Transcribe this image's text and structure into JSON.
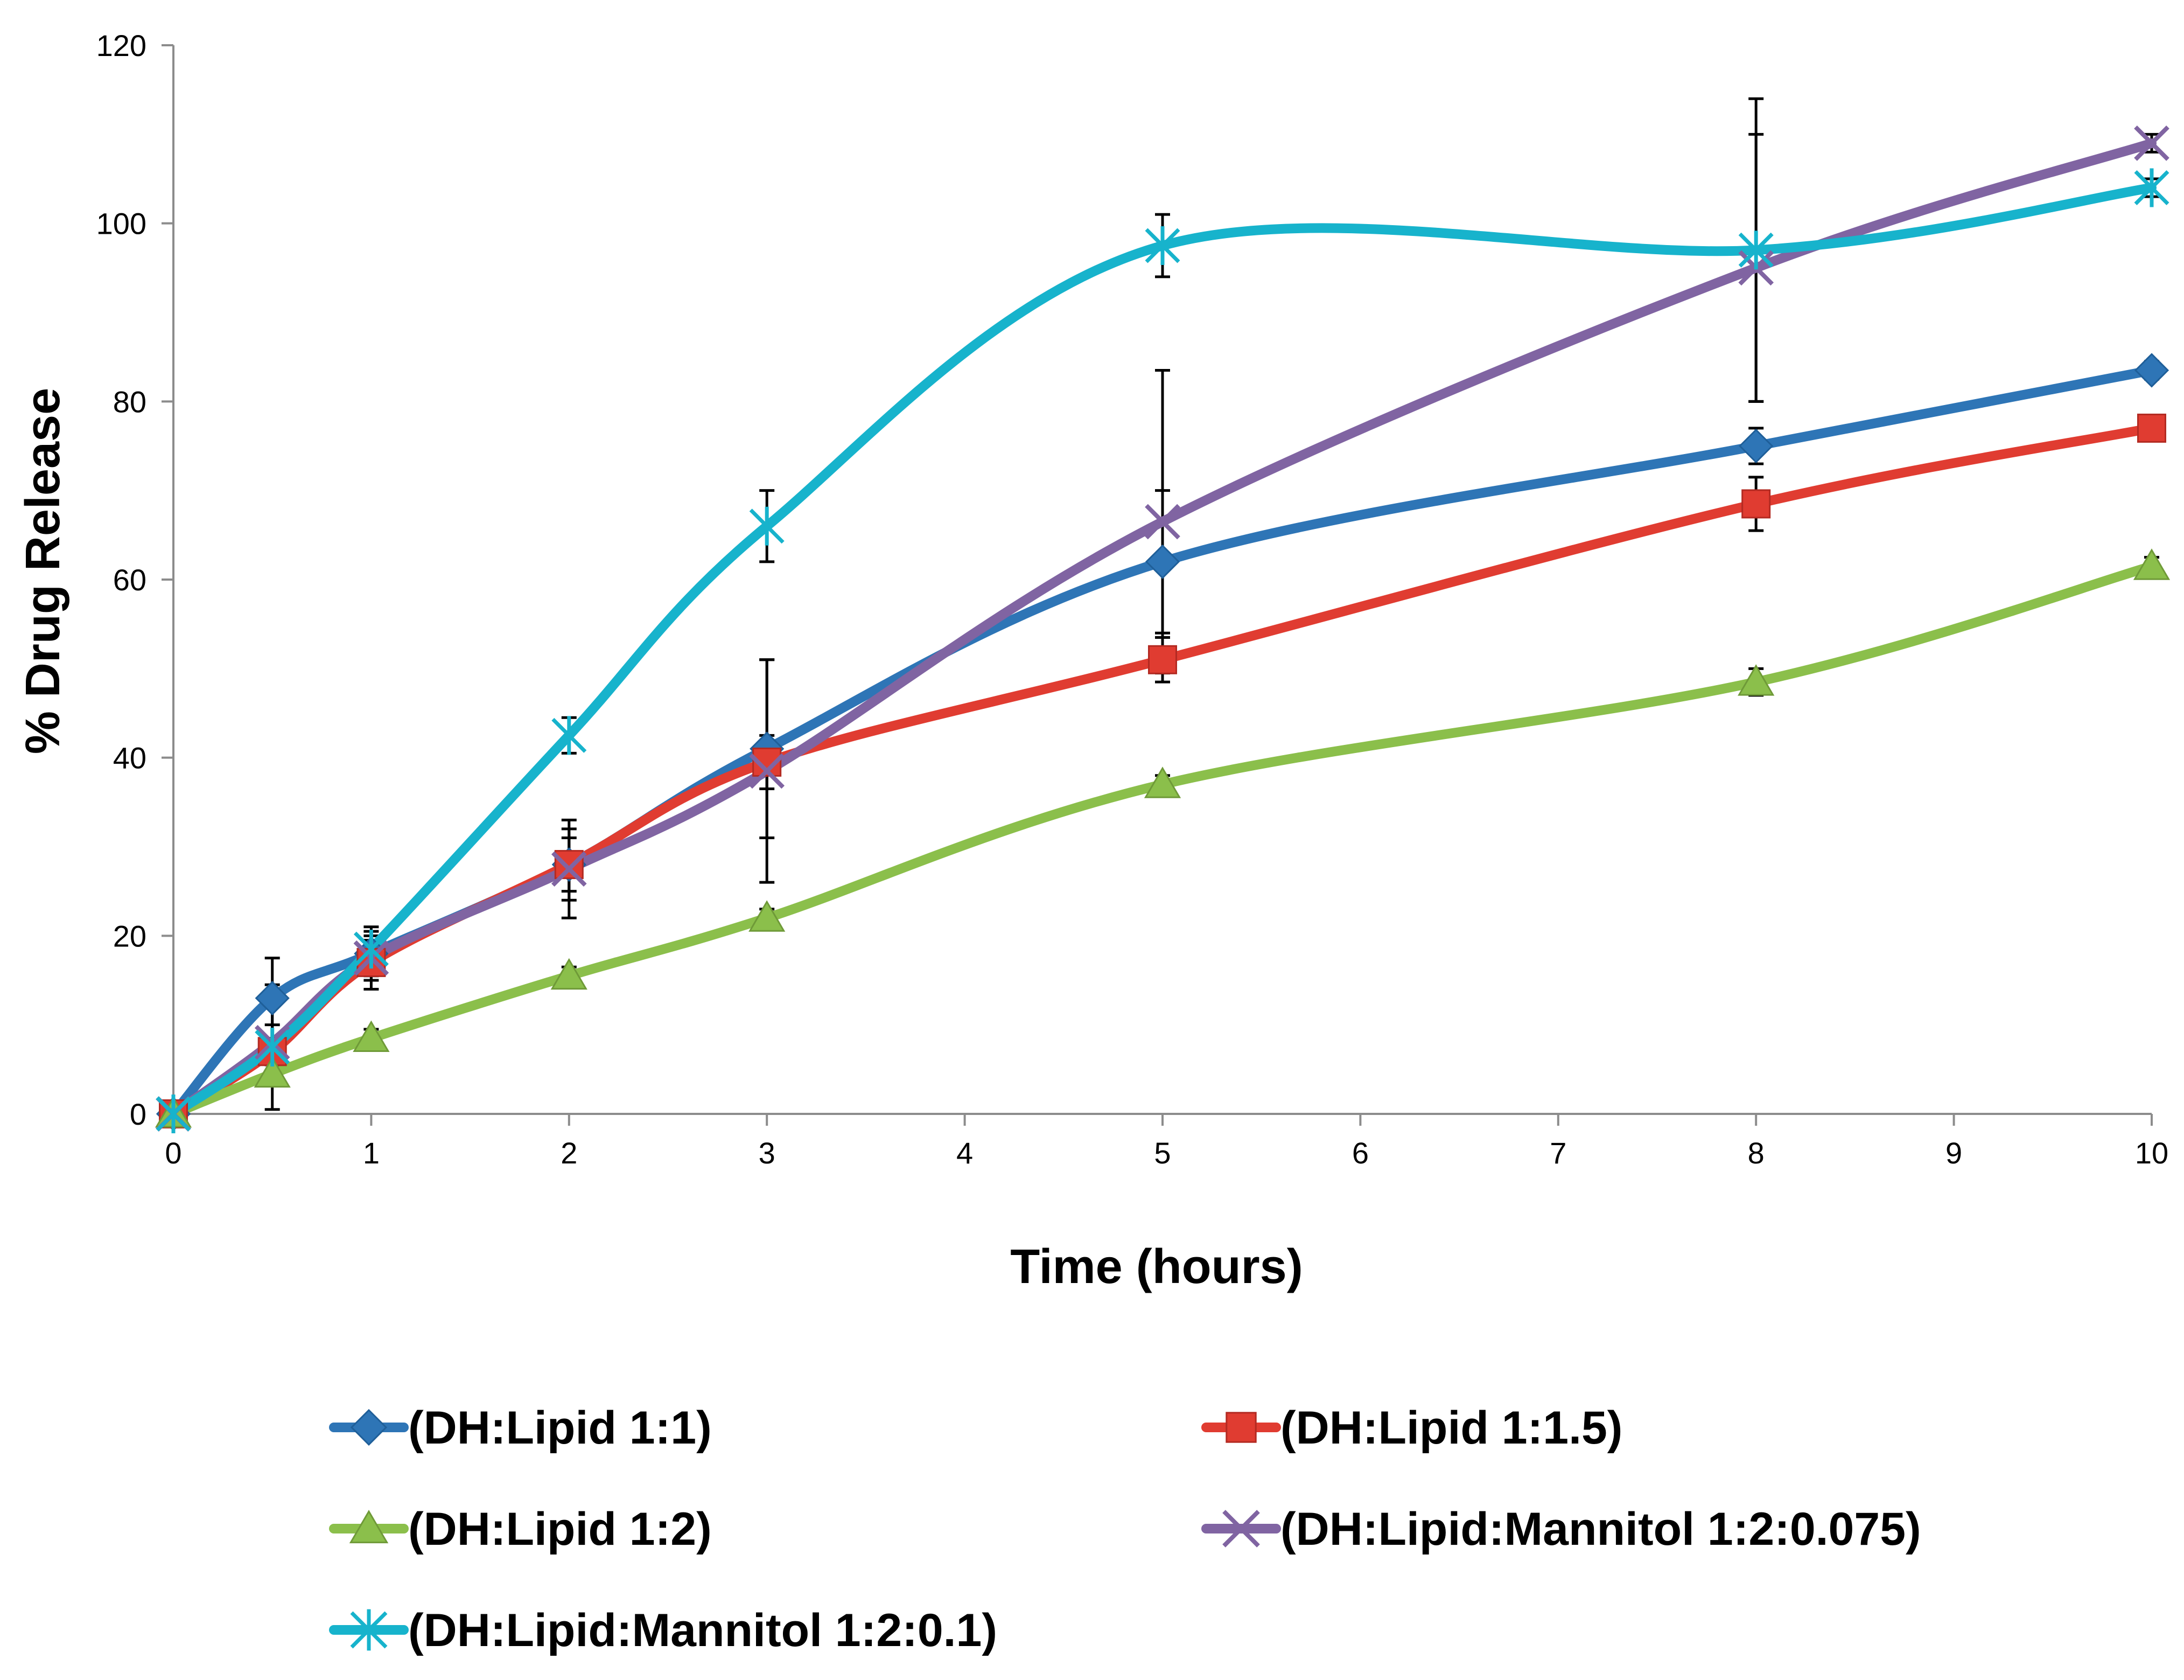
{
  "chart_data": {
    "type": "line",
    "title": "",
    "xlabel": "Time (hours)",
    "ylabel": "% Drug Release",
    "xlim": [
      0,
      10
    ],
    "ylim": [
      0,
      120
    ],
    "xticks": [
      0,
      1,
      2,
      3,
      4,
      5,
      6,
      7,
      8,
      9,
      10
    ],
    "yticks": [
      0,
      20,
      40,
      60,
      80,
      100,
      120
    ],
    "grid": false,
    "legend_position": "bottom",
    "x": [
      0,
      0.5,
      1,
      2,
      3,
      5,
      8,
      10
    ],
    "series": [
      {
        "name": "(DH:Lipid 1:1)",
        "color": "#2E75B6",
        "marker": "diamond",
        "values": [
          0,
          13,
          18,
          28,
          41,
          62,
          75,
          83.5
        ],
        "errors": [
          0,
          4.5,
          3,
          4,
          10,
          8,
          2,
          1
        ]
      },
      {
        "name": "(DH:Lipid 1:1.5)",
        "color": "#E03C31",
        "marker": "square",
        "values": [
          0,
          7,
          17,
          28,
          39.5,
          51,
          68.5,
          77
        ],
        "errors": [
          0,
          1,
          3,
          3,
          3,
          2.5,
          3,
          1
        ]
      },
      {
        "name": "(DH:Lipid 1:2)",
        "color": "#8BBF4B",
        "marker": "triangle",
        "values": [
          0,
          4.5,
          8.5,
          15.5,
          22,
          37,
          48.5,
          61.5
        ],
        "errors": [
          0,
          1,
          1,
          1,
          1,
          1,
          1.5,
          1
        ]
      },
      {
        "name": "(DH:Lipid:Mannitol 1:2:0.075)",
        "color": "#8064A2",
        "marker": "x",
        "values": [
          0,
          8,
          17.5,
          27.5,
          38.5,
          66.5,
          95,
          109
        ],
        "errors": [
          0,
          2,
          2,
          5.5,
          12.5,
          17,
          15,
          1
        ]
      },
      {
        "name": "(DH:Lipid:Mannitol 1:2:0.1)",
        "color": "#17B3CC",
        "marker": "star",
        "values": [
          0,
          7.5,
          18.5,
          42.5,
          66,
          97.5,
          97,
          104
        ],
        "errors": [
          0,
          7,
          2,
          2,
          4,
          3.5,
          17,
          1
        ]
      }
    ]
  }
}
